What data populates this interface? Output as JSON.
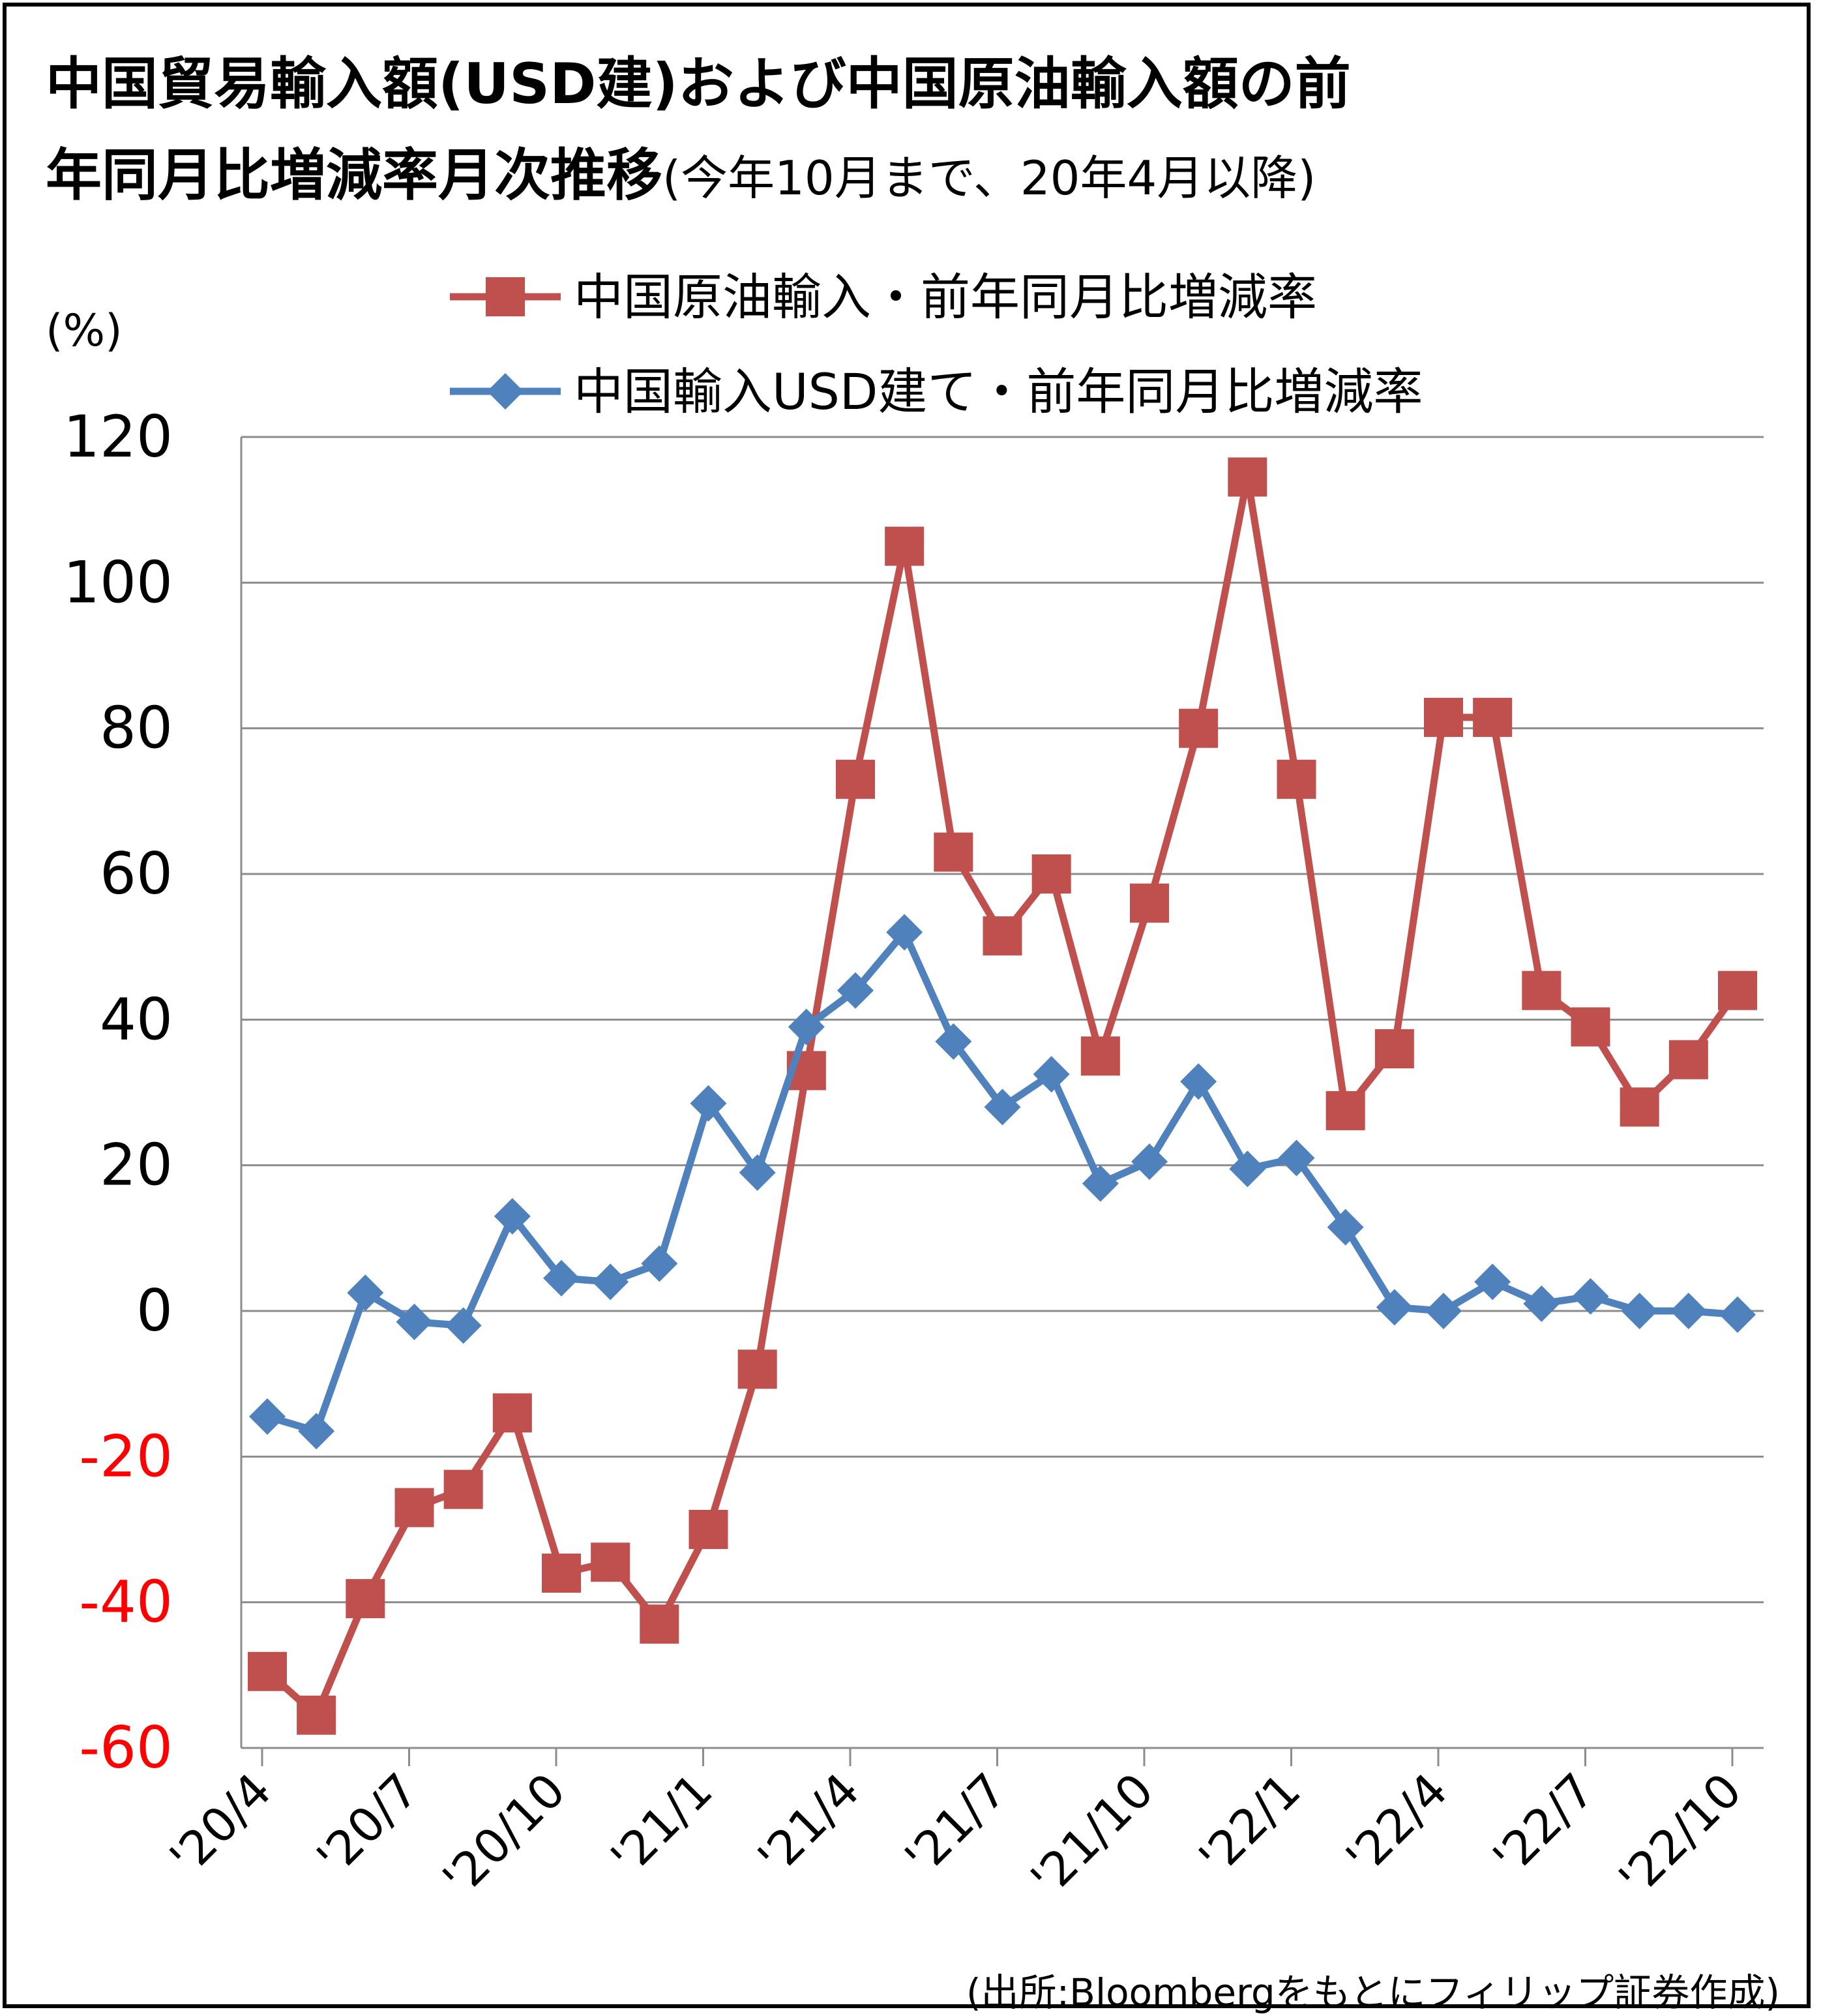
{
  "title": {
    "line1": "中国貿易輸入額(USD建)および中国原油輸入額の前",
    "line2_main": "年同月比増減率月次推移",
    "line2_sub": "(今年10月まで、20年4月以降)"
  },
  "source": "(出所:Bloombergをもとにフィリップ証券作成)",
  "colors": {
    "crude": "#C0504D",
    "imports": "#4F81BD",
    "negative_tick": "#FF0000",
    "grid": "#8c8c8c"
  },
  "chart_data": {
    "type": "line",
    "title": "中国貿易輸入額(USD建)および中国原油輸入額の前年同月比増減率月次推移",
    "ylabel": "(%)",
    "ylim": [
      -60,
      120
    ],
    "yticks": [
      120,
      100,
      80,
      60,
      40,
      20,
      0,
      -20,
      -40,
      -60
    ],
    "grid": true,
    "legend_position": "top-center",
    "x": [
      "'20/4",
      "'20/5",
      "'20/6",
      "'20/7",
      "'20/8",
      "'20/9",
      "'20/10",
      "'20/11",
      "'20/12",
      "'21/1",
      "'21/2",
      "'21/3",
      "'21/4",
      "'21/5",
      "'21/6",
      "'21/7",
      "'21/8",
      "'21/9",
      "'21/10",
      "'21/11",
      "'21/12",
      "'22/1",
      "'22/2",
      "'22/3",
      "'22/4",
      "'22/5",
      "'22/6",
      "'22/7",
      "'22/8",
      "'22/9",
      "'22/10"
    ],
    "xtick_labels": [
      "'20/4",
      "'20/7",
      "'20/10",
      "'21/1",
      "'21/4",
      "'21/7",
      "'21/10",
      "'22/1",
      "'22/4",
      "'22/7",
      "'22/10"
    ],
    "series": [
      {
        "name": "中国原油輸入・前年同月比増減率",
        "marker": "square",
        "color": "#C0504D",
        "values": [
          -49.5,
          -55.5,
          -39.5,
          -27,
          -24.5,
          -14,
          -36,
          -34.5,
          -43,
          -30,
          -8,
          33,
          73,
          105,
          63,
          51.5,
          60,
          35,
          56,
          80,
          114.5,
          73,
          27.5,
          36,
          81.5,
          81.5,
          44,
          39,
          28,
          34.5,
          44
        ]
      },
      {
        "name": "中国輸入USD建て・前年同月比増減率",
        "marker": "diamond",
        "color": "#4F81BD",
        "values": [
          -14.5,
          -16.5,
          2.5,
          -1.5,
          -2,
          13,
          4.5,
          4,
          6.5,
          28.5,
          19,
          39,
          44,
          52,
          37,
          28,
          32.5,
          17.5,
          20.5,
          31.5,
          19.5,
          21,
          11.5,
          0.5,
          0,
          4,
          1,
          2,
          0,
          0,
          -0.5
        ]
      }
    ]
  }
}
